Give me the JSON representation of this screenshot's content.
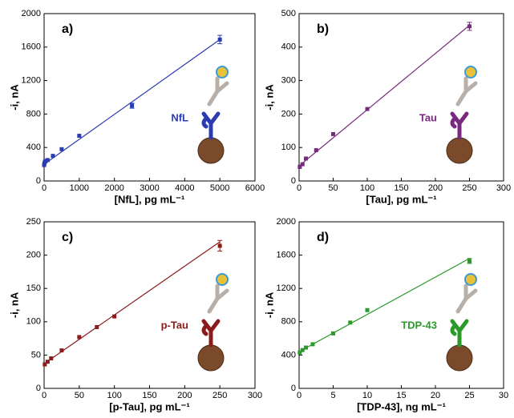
{
  "chart_data": [
    {
      "type": "scatter",
      "panel_label": "a)",
      "x_label": "[NfL], pg mL⁻¹",
      "y_label": "-i, nA",
      "annotation": "NfL",
      "color": "#2b3bb0",
      "x": [
        0,
        10,
        25,
        50,
        100,
        250,
        500,
        1000,
        2500,
        5000
      ],
      "y": [
        190,
        210,
        230,
        240,
        250,
        300,
        380,
        540,
        900,
        1690
      ],
      "errors": [
        null,
        null,
        null,
        null,
        null,
        null,
        null,
        null,
        30,
        50
      ],
      "fit_line": {
        "x": [
          0,
          5000
        ],
        "y": [
          200,
          1690
        ]
      },
      "xlim": [
        0,
        6000
      ],
      "ylim": [
        0,
        2000
      ],
      "xticks": [
        0,
        1000,
        2000,
        3000,
        4000,
        5000,
        6000
      ],
      "yticks": [
        0,
        400,
        800,
        1200,
        1600,
        2000
      ]
    },
    {
      "type": "scatter",
      "panel_label": "b)",
      "x_label": "[Tau], pg mL⁻¹",
      "y_label": "-i, nA",
      "annotation": "Tau",
      "color": "#7a2a7e",
      "x": [
        1,
        5,
        10,
        25,
        50,
        100,
        250
      ],
      "y": [
        42,
        50,
        67,
        92,
        140,
        215,
        462
      ],
      "errors": [
        null,
        null,
        null,
        null,
        null,
        null,
        12
      ],
      "fit_line": {
        "x": [
          0,
          250
        ],
        "y": [
          45,
          465
        ]
      },
      "xlim": [
        0,
        300
      ],
      "ylim": [
        0,
        500
      ],
      "xticks": [
        0,
        50,
        100,
        150,
        200,
        250,
        300
      ],
      "yticks": [
        0,
        100,
        200,
        300,
        400,
        500
      ]
    },
    {
      "type": "scatter",
      "panel_label": "c)",
      "x_label": "[p-Tau], pg mL⁻¹",
      "y_label": "-i, nA",
      "annotation": "p-Tau",
      "color": "#8b1c1c",
      "x": [
        1,
        5,
        10,
        25,
        50,
        75,
        100,
        250
      ],
      "y": [
        36,
        40,
        45,
        57,
        77,
        92,
        108,
        214
      ],
      "errors": [
        null,
        null,
        null,
        null,
        null,
        null,
        null,
        8
      ],
      "fit_line": {
        "x": [
          0,
          250
        ],
        "y": [
          37,
          220
        ]
      },
      "xlim": [
        0,
        300
      ],
      "ylim": [
        0,
        250
      ],
      "xticks": [
        0,
        50,
        100,
        150,
        200,
        250,
        300
      ],
      "yticks": [
        0,
        50,
        100,
        150,
        200,
        250
      ]
    },
    {
      "type": "scatter",
      "panel_label": "d)",
      "x_label": "[TDP-43], ng mL⁻¹",
      "y_label": "-i, nA",
      "annotation": "TDP-43",
      "color": "#2a9a2a",
      "x": [
        0.1,
        0.5,
        1,
        2,
        5,
        7.5,
        10,
        25
      ],
      "y": [
        430,
        460,
        490,
        530,
        660,
        790,
        940,
        1530
      ],
      "errors": [
        null,
        null,
        null,
        null,
        null,
        null,
        null,
        30
      ],
      "fit_line": {
        "x": [
          0,
          25
        ],
        "y": [
          440,
          1560
        ]
      },
      "xlim": [
        0,
        30
      ],
      "ylim": [
        0,
        2000
      ],
      "xticks": [
        0,
        5,
        10,
        15,
        20,
        25,
        30
      ],
      "yticks": [
        0,
        400,
        800,
        1200,
        1600,
        2000
      ]
    }
  ]
}
